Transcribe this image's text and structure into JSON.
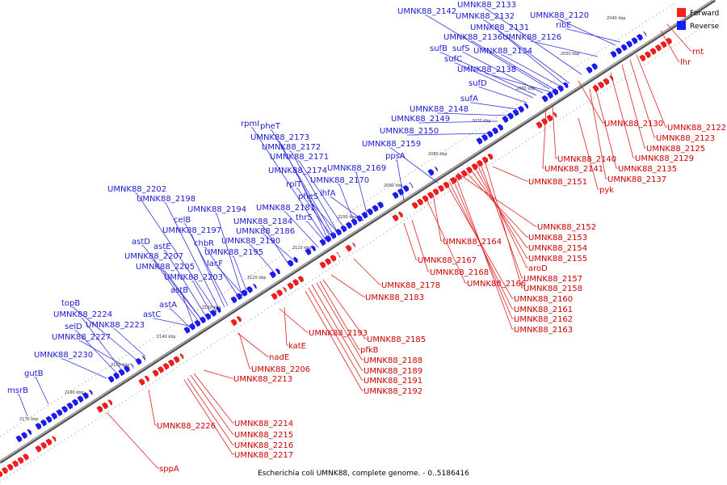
{
  "caption": "Escherichia coli UMNK88, complete genome. - 0..5186416",
  "legend": {
    "forward": {
      "label": "Forward",
      "color": "#ff1a1a"
    },
    "reverse": {
      "label": "Reverse",
      "color": "#1a1aff"
    }
  },
  "ticks": [
    "2040 kbp",
    "2050 kbp",
    "2060 kbp",
    "2070 kbp",
    "2080 kbp",
    "2090 kbp",
    "2100 kbp",
    "2110 kbp",
    "2120 kbp",
    "2130 kbp",
    "2140 kbp",
    "2150 kbp",
    "2160 kbp",
    "2170 kbp"
  ],
  "reverse_labels": [
    "UMNK88_2133",
    "UMNK88_2142",
    "UMNK88_2132",
    "UMNK88_2120",
    "ribE",
    "UMNK88_2131",
    "UMNK88_2136",
    "UMNK88_2126",
    "sufB",
    "sufS",
    "UMNK88_2134",
    "sufC",
    "UMNK88_2138",
    "sufD",
    "sufA",
    "UMNK88_2148",
    "UMNK88_2149",
    "rpmI",
    "pheT",
    "UMNK88_2150",
    "UMNK88_2173",
    "UMNK88_2159",
    "UMNK88_2172",
    "ppsA",
    "UMNK88_2171",
    "UMNK88_2174",
    "UMNK88_2169",
    "rplT",
    "UMNK88_2170",
    "UMNK88_2202",
    "ihfA",
    "pheS",
    "UMNK88_2198",
    "UMNK88_2181",
    "UMNK88_2194",
    "thrS",
    "celB",
    "UMNK88_2184",
    "UMNK88_2197",
    "UMNK88_2186",
    "astD",
    "chbR",
    "UMNK88_2190",
    "astE",
    "UMNK88_2195",
    "UMNK88_2207",
    "lacF",
    "UMNK88_2205",
    "UMNK88_2203",
    "astB",
    "astA",
    "topB",
    "astC",
    "UMNK88_2224",
    "selD",
    "UMNK88_2223",
    "UMNK88_2227",
    "UMNK88_2230",
    "gutB",
    "msrB"
  ],
  "forward_labels": [
    "rnt",
    "lhr",
    "UMNK88_2130",
    "UMNK88_2122",
    "UMNK88_2123",
    "UMNK88_2125",
    "UMNK88_2129",
    "UMNK88_2140",
    "UMNK88_2135",
    "UMNK88_2141",
    "UMNK88_2137",
    "UMNK88_2151",
    "pyk",
    "UMNK88_2152",
    "UMNK88_2153",
    "UMNK88_2164",
    "UMNK88_2154",
    "UMNK88_2155",
    "UMNK88_2167",
    "aroD",
    "UMNK88_2168",
    "UMNK88_2157",
    "UMNK88_2178",
    "UMNK88_2166",
    "UMNK88_2158",
    "UMNK88_2183",
    "UMNK88_2160",
    "UMNK88_2161",
    "UMNK88_2162",
    "UMNK88_2163",
    "UMNK88_2193",
    "UMNK88_2185",
    "katE",
    "pfkB",
    "nadE",
    "UMNK88_2188",
    "UMNK88_2206",
    "UMNK88_2189",
    "UMNK88_2213",
    "UMNK88_2191",
    "UMNK88_2192",
    "UMNK88_2226",
    "UMNK88_2214",
    "UMNK88_2215",
    "UMNK88_2216",
    "UMNK88_2217",
    "sppA"
  ]
}
